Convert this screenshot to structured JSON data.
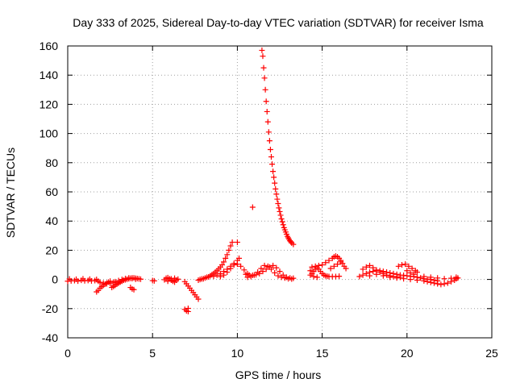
{
  "chart_data": {
    "type": "scatter",
    "title": "Day 333 of 2025, Sidereal Day-to-day VTEC variation (SDTVAR) for receiver Isma",
    "xlabel": "GPS time / hours",
    "ylabel": "SDTVAR / TECUs",
    "xlim": [
      0,
      25
    ],
    "ylim": [
      -40,
      160
    ],
    "xticks": [
      0,
      5,
      10,
      15,
      20,
      25
    ],
    "yticks": [
      -40,
      -20,
      0,
      20,
      40,
      60,
      80,
      100,
      120,
      140,
      160
    ],
    "grid": true,
    "marker": "+",
    "series": [
      {
        "name": "SDTVAR",
        "color": "#ff0000",
        "points": [
          [
            0.0,
            -1.2
          ],
          [
            0.2,
            -1.0
          ],
          [
            0.4,
            -0.8
          ],
          [
            0.6,
            -1.1
          ],
          [
            0.8,
            -0.6
          ],
          [
            1.0,
            -0.9
          ],
          [
            1.2,
            -0.7
          ],
          [
            1.4,
            -1.0
          ],
          [
            1.6,
            -0.8
          ],
          [
            1.8,
            -1.2
          ],
          [
            0.1,
            0.3
          ],
          [
            0.5,
            0.1
          ],
          [
            0.9,
            0.4
          ],
          [
            1.3,
            0.2
          ],
          [
            1.7,
            0.0
          ],
          [
            1.7,
            -8.5
          ],
          [
            1.8,
            -7.5
          ],
          [
            1.9,
            -6.0
          ],
          [
            2.0,
            -5.0
          ],
          [
            2.1,
            -4.0
          ],
          [
            2.2,
            -3.2
          ],
          [
            2.3,
            -2.5
          ],
          [
            2.4,
            -1.8
          ],
          [
            2.5,
            -1.2
          ],
          [
            1.9,
            -2.0
          ],
          [
            2.1,
            -2.5
          ],
          [
            2.3,
            -3.0
          ],
          [
            2.5,
            -2.8
          ],
          [
            2.7,
            -2.0
          ],
          [
            2.6,
            -5.5
          ],
          [
            2.7,
            -4.8
          ],
          [
            2.8,
            -4.0
          ],
          [
            2.9,
            -3.2
          ],
          [
            3.0,
            -2.5
          ],
          [
            3.1,
            -1.8
          ],
          [
            3.2,
            -1.2
          ],
          [
            3.3,
            -0.6
          ],
          [
            3.4,
            -0.2
          ],
          [
            3.5,
            0.2
          ],
          [
            3.6,
            0.5
          ],
          [
            3.7,
            0.8
          ],
          [
            3.8,
            1.0
          ],
          [
            3.9,
            1.0
          ],
          [
            4.0,
            0.8
          ],
          [
            4.1,
            0.6
          ],
          [
            4.2,
            0.4
          ],
          [
            4.3,
            0.2
          ],
          [
            2.8,
            -1.5
          ],
          [
            3.0,
            -0.8
          ],
          [
            3.2,
            0.0
          ],
          [
            3.4,
            0.6
          ],
          [
            3.6,
            1.0
          ],
          [
            3.8,
            0.6
          ],
          [
            4.0,
            0.2
          ],
          [
            3.7,
            -5.5
          ],
          [
            3.8,
            -6.5
          ],
          [
            3.9,
            -7.0
          ],
          [
            5.0,
            -0.8
          ],
          [
            5.1,
            -1.0
          ],
          [
            5.7,
            -0.2
          ],
          [
            5.8,
            0.8
          ],
          [
            5.9,
            1.2
          ],
          [
            6.0,
            0.5
          ],
          [
            6.1,
            -0.5
          ],
          [
            6.2,
            -1.2
          ],
          [
            6.3,
            -1.8
          ],
          [
            6.4,
            -0.5
          ],
          [
            6.5,
            0.2
          ],
          [
            5.9,
            -1.2
          ],
          [
            6.1,
            0.4
          ],
          [
            6.3,
            0.8
          ],
          [
            6.9,
            -20.5
          ],
          [
            7.0,
            -21.5
          ],
          [
            7.1,
            -22.0
          ],
          [
            7.1,
            -19.8
          ],
          [
            6.9,
            -1.5
          ],
          [
            7.0,
            -3.0
          ],
          [
            7.1,
            -4.5
          ],
          [
            7.2,
            -6.0
          ],
          [
            7.3,
            -7.5
          ],
          [
            7.4,
            -9.0
          ],
          [
            7.5,
            -10.5
          ],
          [
            7.6,
            -12.0
          ],
          [
            7.7,
            -13.5
          ],
          [
            7.7,
            -0.5
          ],
          [
            7.8,
            0.0
          ],
          [
            7.9,
            0.3
          ],
          [
            8.0,
            0.5
          ],
          [
            8.1,
            1.0
          ],
          [
            8.2,
            1.5
          ],
          [
            8.3,
            1.8
          ],
          [
            8.4,
            2.5
          ],
          [
            8.5,
            3.2
          ],
          [
            8.6,
            4.0
          ],
          [
            8.7,
            5.0
          ],
          [
            8.8,
            6.0
          ],
          [
            8.9,
            7.2
          ],
          [
            9.0,
            8.5
          ],
          [
            9.1,
            10.0
          ],
          [
            9.2,
            12.0
          ],
          [
            9.3,
            14.5
          ],
          [
            9.4,
            17.0
          ],
          [
            9.5,
            20.0
          ],
          [
            9.6,
            23.0
          ],
          [
            9.7,
            25.5
          ],
          [
            8.6,
            2.2
          ],
          [
            8.8,
            3.0
          ],
          [
            9.0,
            4.0
          ],
          [
            9.2,
            5.5
          ],
          [
            9.4,
            7.0
          ],
          [
            9.6,
            9.0
          ],
          [
            9.8,
            11.0
          ],
          [
            10.0,
            13.0
          ],
          [
            10.1,
            14.5
          ],
          [
            9.0,
            2.0
          ],
          [
            9.2,
            3.0
          ],
          [
            9.4,
            5.0
          ],
          [
            9.6,
            7.5
          ],
          [
            9.8,
            10.0
          ],
          [
            10.0,
            10.5
          ],
          [
            10.2,
            9.0
          ],
          [
            10.4,
            6.5
          ],
          [
            10.6,
            4.0
          ],
          [
            10.0,
            25.5
          ],
          [
            10.5,
            3.5
          ],
          [
            10.7,
            3.0
          ],
          [
            10.9,
            2.8
          ],
          [
            11.1,
            3.2
          ],
          [
            11.3,
            4.0
          ],
          [
            11.5,
            5.5
          ],
          [
            11.7,
            7.0
          ],
          [
            11.9,
            8.5
          ],
          [
            12.1,
            9.5
          ],
          [
            12.3,
            8.0
          ],
          [
            12.5,
            5.5
          ],
          [
            12.7,
            3.0
          ],
          [
            12.9,
            1.5
          ],
          [
            13.1,
            1.0
          ],
          [
            13.3,
            0.8
          ],
          [
            10.6,
            1.5
          ],
          [
            10.8,
            2.0
          ],
          [
            11.0,
            3.0
          ],
          [
            11.2,
            5.0
          ],
          [
            11.4,
            7.5
          ],
          [
            11.6,
            9.5
          ],
          [
            11.8,
            9.0
          ],
          [
            12.0,
            7.0
          ],
          [
            12.2,
            4.5
          ],
          [
            12.4,
            2.5
          ],
          [
            12.6,
            1.5
          ],
          [
            12.8,
            1.0
          ],
          [
            13.0,
            0.5
          ],
          [
            13.2,
            0.3
          ],
          [
            10.9,
            49.5
          ],
          [
            11.45,
            157.0
          ],
          [
            11.5,
            153.0
          ],
          [
            11.55,
            145.0
          ],
          [
            11.6,
            138.0
          ],
          [
            11.65,
            130.0
          ],
          [
            11.7,
            122.0
          ],
          [
            11.75,
            115.0
          ],
          [
            11.8,
            108.0
          ],
          [
            11.85,
            101.0
          ],
          [
            11.9,
            95.0
          ],
          [
            11.95,
            89.0
          ],
          [
            12.0,
            84.0
          ],
          [
            12.05,
            79.0
          ],
          [
            12.1,
            74.0
          ],
          [
            12.15,
            70.0
          ],
          [
            12.2,
            66.0
          ],
          [
            12.25,
            62.0
          ],
          [
            12.3,
            58.5
          ],
          [
            12.35,
            55.0
          ],
          [
            12.4,
            52.0
          ],
          [
            12.45,
            49.0
          ],
          [
            12.5,
            46.5
          ],
          [
            12.55,
            44.0
          ],
          [
            12.6,
            41.5
          ],
          [
            12.65,
            39.5
          ],
          [
            12.7,
            37.5
          ],
          [
            12.75,
            35.5
          ],
          [
            12.8,
            34.0
          ],
          [
            12.85,
            32.5
          ],
          [
            12.9,
            31.0
          ],
          [
            12.95,
            29.5
          ],
          [
            13.0,
            28.5
          ],
          [
            13.05,
            27.5
          ],
          [
            13.1,
            26.5
          ],
          [
            13.15,
            25.8
          ],
          [
            13.2,
            25.0
          ],
          [
            13.3,
            24.0
          ],
          [
            14.3,
            3.0
          ],
          [
            14.4,
            4.0
          ],
          [
            14.5,
            5.5
          ],
          [
            14.6,
            7.0
          ],
          [
            14.7,
            8.0
          ],
          [
            14.8,
            7.0
          ],
          [
            14.9,
            5.5
          ],
          [
            15.0,
            4.0
          ],
          [
            15.1,
            3.0
          ],
          [
            15.2,
            2.5
          ],
          [
            15.3,
            2.2
          ],
          [
            15.4,
            2.0
          ],
          [
            15.6,
            2.0
          ],
          [
            15.8,
            2.0
          ],
          [
            16.0,
            2.2
          ],
          [
            14.4,
            8.5
          ],
          [
            14.6,
            9.0
          ],
          [
            14.8,
            9.5
          ],
          [
            15.0,
            10.0
          ],
          [
            15.2,
            11.5
          ],
          [
            15.4,
            13.0
          ],
          [
            15.6,
            14.5
          ],
          [
            15.7,
            15.5
          ],
          [
            15.8,
            16.0
          ],
          [
            15.9,
            15.5
          ],
          [
            16.0,
            14.5
          ],
          [
            16.1,
            13.0
          ],
          [
            16.2,
            11.0
          ],
          [
            16.3,
            9.0
          ],
          [
            16.4,
            7.5
          ],
          [
            14.3,
            6.0
          ],
          [
            14.5,
            2.0
          ],
          [
            14.7,
            1.5
          ],
          [
            15.5,
            7.5
          ],
          [
            15.7,
            9.0
          ],
          [
            15.9,
            10.5
          ],
          [
            16.1,
            12.0
          ],
          [
            17.2,
            2.0
          ],
          [
            17.4,
            3.0
          ],
          [
            17.6,
            4.0
          ],
          [
            17.8,
            5.0
          ],
          [
            18.0,
            5.5
          ],
          [
            18.2,
            6.0
          ],
          [
            18.4,
            6.0
          ],
          [
            18.6,
            5.5
          ],
          [
            18.8,
            5.0
          ],
          [
            19.0,
            4.5
          ],
          [
            19.2,
            4.0
          ],
          [
            19.4,
            3.5
          ],
          [
            19.6,
            3.0
          ],
          [
            19.8,
            2.8
          ],
          [
            20.0,
            2.5
          ],
          [
            20.2,
            2.2
          ],
          [
            20.4,
            2.0
          ],
          [
            20.6,
            1.5
          ],
          [
            20.8,
            1.0
          ],
          [
            21.0,
            0.5
          ],
          [
            21.2,
            0.2
          ],
          [
            21.4,
            0.0
          ],
          [
            21.6,
            -0.5
          ],
          [
            21.8,
            -1.0
          ],
          [
            17.4,
            7.0
          ],
          [
            17.6,
            8.5
          ],
          [
            17.8,
            9.5
          ],
          [
            18.0,
            8.0
          ],
          [
            18.2,
            6.5
          ],
          [
            18.4,
            5.0
          ],
          [
            18.6,
            4.0
          ],
          [
            18.8,
            3.0
          ],
          [
            19.0,
            2.5
          ],
          [
            19.2,
            2.0
          ],
          [
            19.4,
            1.8
          ],
          [
            19.6,
            1.5
          ],
          [
            19.5,
            9.0
          ],
          [
            19.7,
            10.0
          ],
          [
            19.9,
            10.5
          ],
          [
            20.1,
            9.0
          ],
          [
            20.3,
            7.5
          ],
          [
            20.5,
            6.0
          ],
          [
            20.6,
            5.0
          ],
          [
            20.4,
            3.5
          ],
          [
            20.2,
            4.5
          ],
          [
            20.0,
            6.0
          ],
          [
            17.8,
            2.5
          ],
          [
            18.2,
            3.5
          ],
          [
            18.6,
            2.5
          ],
          [
            19.0,
            1.5
          ],
          [
            19.4,
            1.0
          ],
          [
            19.8,
            0.5
          ],
          [
            20.2,
            0.0
          ],
          [
            20.6,
            -0.5
          ],
          [
            21.0,
            -1.0
          ],
          [
            21.2,
            -1.5
          ],
          [
            21.4,
            -2.0
          ],
          [
            21.6,
            -2.5
          ],
          [
            21.8,
            -3.0
          ],
          [
            22.0,
            -3.5
          ],
          [
            22.2,
            -3.0
          ],
          [
            22.4,
            -2.5
          ],
          [
            22.6,
            -1.5
          ],
          [
            22.8,
            -0.5
          ],
          [
            22.9,
            0.5
          ],
          [
            23.0,
            1.0
          ],
          [
            21.0,
            2.0
          ],
          [
            21.4,
            1.5
          ],
          [
            21.8,
            1.0
          ],
          [
            22.2,
            0.5
          ],
          [
            22.6,
            0.8
          ],
          [
            22.9,
            1.5
          ]
        ]
      }
    ]
  }
}
